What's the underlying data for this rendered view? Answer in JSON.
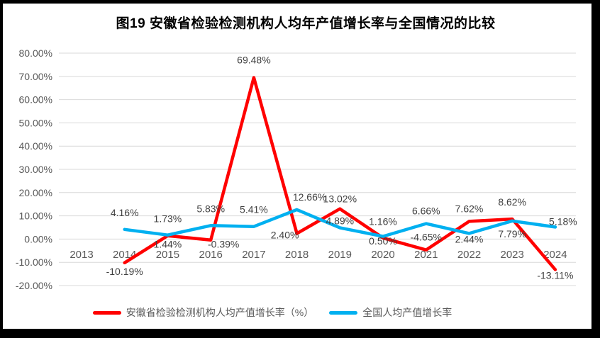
{
  "title": "图19 安徽省检验检测机构人均年产值增长率与全国情况的比较",
  "colors": {
    "anhui_series": "#FF0000",
    "national_series": "#00B0F0",
    "gridline": "#D9D9D9",
    "axis_text": "#595959",
    "data_label": "#404040",
    "title_text": "#000000",
    "frame_border": "#000000",
    "background": "#FFFFFF"
  },
  "chart_data": {
    "type": "line",
    "title": "图19 安徽省检验检测机构人均年产值增长率与全国情况的比较",
    "x": [
      "2013",
      "2014",
      "2015",
      "2016",
      "2017",
      "2018",
      "2019",
      "2020",
      "2021",
      "2022",
      "2023",
      "2024"
    ],
    "ylim": [
      -20,
      80
    ],
    "ytick_step": 10,
    "yticks": [
      "80.00%",
      "70.00%",
      "60.00%",
      "50.00%",
      "40.00%",
      "30.00%",
      "20.00%",
      "10.00%",
      "0.00%",
      "-10.00%",
      "-20.00%"
    ],
    "grid": true,
    "legend_position": "bottom",
    "series": [
      {
        "name": "安徽省检验检测机构人均产值增长率（%）",
        "color": "#FF0000",
        "values": [
          null,
          -10.19,
          1.44,
          -0.39,
          69.48,
          2.4,
          13.02,
          0.5,
          -4.65,
          7.62,
          8.62,
          -13.11
        ],
        "labels": [
          null,
          {
            "text": "-10.19%",
            "pos": "below"
          },
          {
            "text": "1.44%",
            "pos": "below"
          },
          {
            "text": "-0.39%",
            "pos": "below",
            "dx": 18,
            "dy": -6
          },
          {
            "text": "69.48%",
            "pos": "above",
            "dy": -7
          },
          {
            "text": "2.40%",
            "pos": "below",
            "dx": -17,
            "dy": -10
          },
          {
            "text": "13.02%",
            "pos": "above",
            "dy": 4
          },
          {
            "text": "0.50%",
            "pos": "below",
            "dy": -8
          },
          {
            "text": "-4.65%",
            "pos": "above"
          },
          {
            "text": "7.62%",
            "pos": "above"
          },
          {
            "text": "8.62%",
            "pos": "above",
            "dy": -6
          },
          {
            "text": "-13.11%",
            "pos": "below",
            "dy": -4
          }
        ]
      },
      {
        "name": "全国人均产值增长率",
        "color": "#00B0F0",
        "values": [
          null,
          4.16,
          1.73,
          5.83,
          5.41,
          12.66,
          4.89,
          1.16,
          6.66,
          2.44,
          7.79,
          5.18
        ],
        "labels": [
          null,
          {
            "text": "4.16%",
            "pos": "above",
            "dy": -6
          },
          {
            "text": "1.73%",
            "pos": "above",
            "dy": -5
          },
          {
            "text": "5.83%",
            "pos": "above",
            "dy": -6
          },
          {
            "text": "5.41%",
            "pos": "above",
            "dy": -6
          },
          {
            "text": "12.66%",
            "pos": "above",
            "dx": 18
          },
          {
            "text": "4.89%",
            "pos": "above",
            "dy": 8
          },
          {
            "text": "1.16%",
            "pos": "above",
            "dy": -3
          },
          {
            "text": "6.66%",
            "pos": "above"
          },
          {
            "text": "2.44%",
            "pos": "below",
            "dy": -4
          },
          {
            "text": "7.79%",
            "pos": "below",
            "dy": 6
          },
          {
            "text": "5.18%",
            "pos": "above",
            "dx": 11,
            "dy": 10
          }
        ]
      }
    ]
  }
}
